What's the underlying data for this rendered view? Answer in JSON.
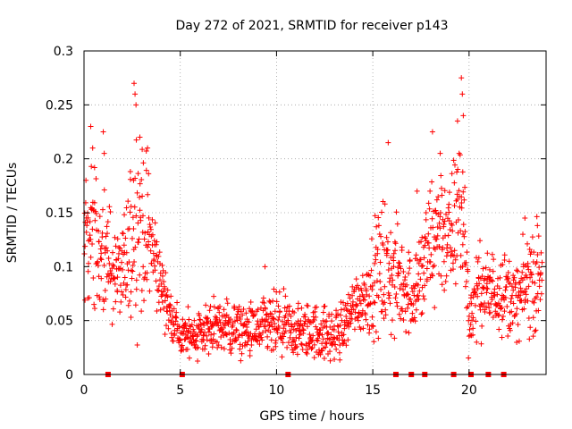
{
  "chart_data": {
    "type": "scatter",
    "title": "Day 272 of 2021, SRMTID for receiver p143",
    "xlabel": "GPS time / hours",
    "ylabel": "SRMTID / TECUs",
    "xlim": [
      0,
      24
    ],
    "ylim": [
      0,
      0.3
    ],
    "x_ticks": [
      0,
      5,
      10,
      15,
      20
    ],
    "x_tick_labels": [
      "0",
      "5",
      "10",
      "15",
      "20"
    ],
    "y_ticks": [
      0,
      0.05,
      0.1,
      0.15,
      0.2,
      0.25,
      0.3
    ],
    "y_tick_labels": [
      "0",
      "0.05",
      "0.1",
      "0.15",
      "0.2",
      "0.25",
      "0.3"
    ],
    "grid": true,
    "marker": "+",
    "color": "#ff0000",
    "envelope": {
      "x": [
        0,
        0.3,
        0.6,
        1.0,
        1.5,
        2.0,
        2.5,
        2.7,
        3.0,
        3.5,
        4.0,
        4.5,
        5.0,
        6.0,
        7.0,
        8.0,
        9.0,
        10.0,
        11.0,
        12.0,
        13.0,
        13.5,
        14.0,
        14.5,
        15.0,
        15.5,
        16.0,
        16.5,
        17.0,
        17.5,
        18.0,
        18.5,
        19.0,
        19.5,
        19.7,
        20.0,
        20.5,
        21.0,
        21.5,
        22.0,
        22.5,
        23.0,
        23.5,
        24.0
      ],
      "mean": [
        0.12,
        0.14,
        0.12,
        0.11,
        0.1,
        0.09,
        0.13,
        0.15,
        0.14,
        0.12,
        0.085,
        0.055,
        0.035,
        0.04,
        0.045,
        0.04,
        0.04,
        0.045,
        0.04,
        0.04,
        0.035,
        0.045,
        0.065,
        0.07,
        0.085,
        0.1,
        0.09,
        0.085,
        0.075,
        0.09,
        0.12,
        0.14,
        0.12,
        0.16,
        0.15,
        0.05,
        0.08,
        0.075,
        0.08,
        0.075,
        0.065,
        0.085,
        0.09,
        0.09
      ],
      "spread": [
        0.04,
        0.05,
        0.05,
        0.04,
        0.035,
        0.035,
        0.06,
        0.07,
        0.06,
        0.04,
        0.025,
        0.02,
        0.015,
        0.02,
        0.02,
        0.02,
        0.02,
        0.025,
        0.02,
        0.02,
        0.02,
        0.02,
        0.02,
        0.025,
        0.035,
        0.05,
        0.045,
        0.035,
        0.03,
        0.04,
        0.05,
        0.05,
        0.045,
        0.06,
        0.06,
        0.025,
        0.03,
        0.03,
        0.03,
        0.03,
        0.025,
        0.035,
        0.04,
        0.04
      ]
    },
    "peaks": [
      {
        "x": 0.1,
        "y": 0.18
      },
      {
        "x": 0.35,
        "y": 0.23
      },
      {
        "x": 0.45,
        "y": 0.21
      },
      {
        "x": 1.0,
        "y": 0.225
      },
      {
        "x": 1.05,
        "y": 0.205
      },
      {
        "x": 2.6,
        "y": 0.27
      },
      {
        "x": 2.65,
        "y": 0.26
      },
      {
        "x": 2.7,
        "y": 0.25
      },
      {
        "x": 2.9,
        "y": 0.22
      },
      {
        "x": 3.3,
        "y": 0.21
      },
      {
        "x": 9.4,
        "y": 0.1
      },
      {
        "x": 15.8,
        "y": 0.215
      },
      {
        "x": 17.3,
        "y": 0.17
      },
      {
        "x": 18.1,
        "y": 0.225
      },
      {
        "x": 18.5,
        "y": 0.205
      },
      {
        "x": 19.4,
        "y": 0.235
      },
      {
        "x": 19.6,
        "y": 0.275
      },
      {
        "x": 19.65,
        "y": 0.26
      },
      {
        "x": 19.7,
        "y": 0.24
      },
      {
        "x": 22.9,
        "y": 0.145
      }
    ],
    "zero_gap_markers_x": [
      1.25,
      5.1,
      10.6,
      16.2,
      17.0,
      17.7,
      19.2,
      20.1,
      21.0,
      21.8
    ]
  }
}
